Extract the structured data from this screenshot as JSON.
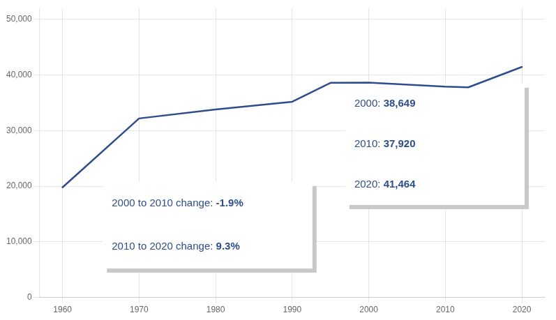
{
  "chart_data": {
    "type": "line",
    "x": [
      1960,
      1970,
      1980,
      1990,
      1995,
      2000,
      2010,
      2013,
      2020
    ],
    "values": [
      19800,
      32200,
      33800,
      35200,
      38600,
      38649,
      37920,
      37800,
      41464
    ],
    "color": "#2E4D8A",
    "xlim": [
      1957,
      2023
    ],
    "xticks": [
      1960,
      1970,
      1980,
      1990,
      2000,
      2010,
      2020
    ],
    "ylim": [
      0,
      52000
    ],
    "yticks": [
      0,
      {
        "value": 10000,
        "label": "10,000"
      },
      {
        "value": 20000,
        "label": "20,000"
      },
      {
        "value": 30000,
        "label": "30,000"
      },
      {
        "value": 40000,
        "label": "40,000"
      },
      {
        "value": 50000,
        "label": "50,000"
      }
    ],
    "grid": true,
    "annotations": [
      [
        [
          "2000: ",
          "38,649"
        ],
        [
          "2010: ",
          "37,920"
        ],
        [
          "2020: ",
          "41,464"
        ]
      ],
      [
        [
          "2000 to 2010 change: ",
          "-1.9%"
        ],
        [
          "2010 to 2020 change: ",
          "9.3%"
        ]
      ]
    ]
  }
}
